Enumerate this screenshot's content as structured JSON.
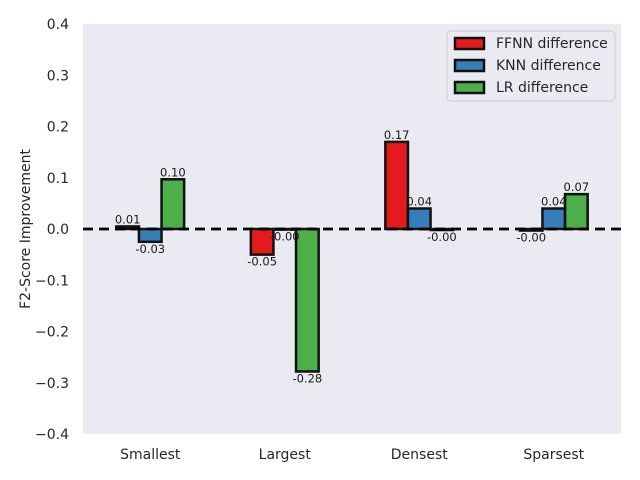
{
  "chart_data": {
    "type": "bar",
    "ylabel": "F2-Score Improvement",
    "xlabel": "",
    "title": "",
    "ylim": [
      -0.4,
      0.4
    ],
    "yticks": [
      0.4,
      0.3,
      0.2,
      0.1,
      0.0,
      -0.1,
      -0.2,
      -0.3,
      -0.4
    ],
    "ytick_labels": [
      "0.4",
      "0.3",
      "0.2",
      "0.1",
      "0.0",
      "−0.1",
      "−0.2",
      "−0.3",
      "−0.4"
    ],
    "categories": [
      "Smallest",
      "Largest",
      "Densest",
      "Sparsest"
    ],
    "series": [
      {
        "name": "FFNN difference",
        "color": "#e41a1c",
        "values": [
          0.005,
          -0.05,
          0.17,
          -0.003
        ],
        "labels": [
          "0.01",
          "-0.05",
          "0.17",
          "-0.00"
        ]
      },
      {
        "name": "KNN difference",
        "color": "#377eb8",
        "values": [
          -0.025,
          -0.001,
          0.04,
          0.04
        ],
        "labels": [
          "-0.03",
          "-0.00",
          "0.04",
          "0.04"
        ]
      },
      {
        "name": "LR difference",
        "color": "#4daf4a",
        "values": [
          0.097,
          -0.278,
          -0.002,
          0.068
        ],
        "labels": [
          "0.10",
          "-0.28",
          "-0.00",
          "0.07"
        ]
      }
    ],
    "reference_line": {
      "y": 0.0,
      "style": "dashed"
    },
    "grid": false,
    "legend_position": "top-right",
    "background": "#eaeaf2"
  }
}
